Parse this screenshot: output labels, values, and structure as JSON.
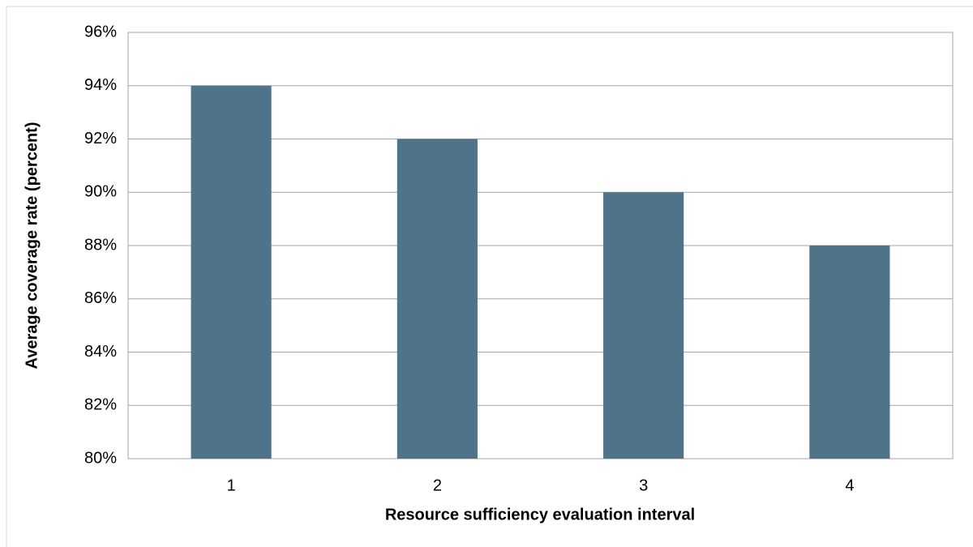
{
  "chart_data": {
    "type": "bar",
    "x_label": "Resource sufficiency evaluation interval",
    "y_label": "Average coverage rate (percent)",
    "categories": [
      "1",
      "2",
      "3",
      "4"
    ],
    "values": [
      94,
      92,
      90,
      88
    ],
    "color": "#4f7489",
    "ylim": [
      80,
      96
    ],
    "yticks": [
      {
        "value": 80,
        "label": "80%"
      },
      {
        "value": 82,
        "label": "82%"
      },
      {
        "value": 84,
        "label": "84%"
      },
      {
        "value": 86,
        "label": "86%"
      },
      {
        "value": 88,
        "label": "88%"
      },
      {
        "value": 90,
        "label": "90%"
      },
      {
        "value": 92,
        "label": "92%"
      },
      {
        "value": 94,
        "label": "94%"
      },
      {
        "value": 96,
        "label": "96%"
      }
    ],
    "grid": true
  }
}
